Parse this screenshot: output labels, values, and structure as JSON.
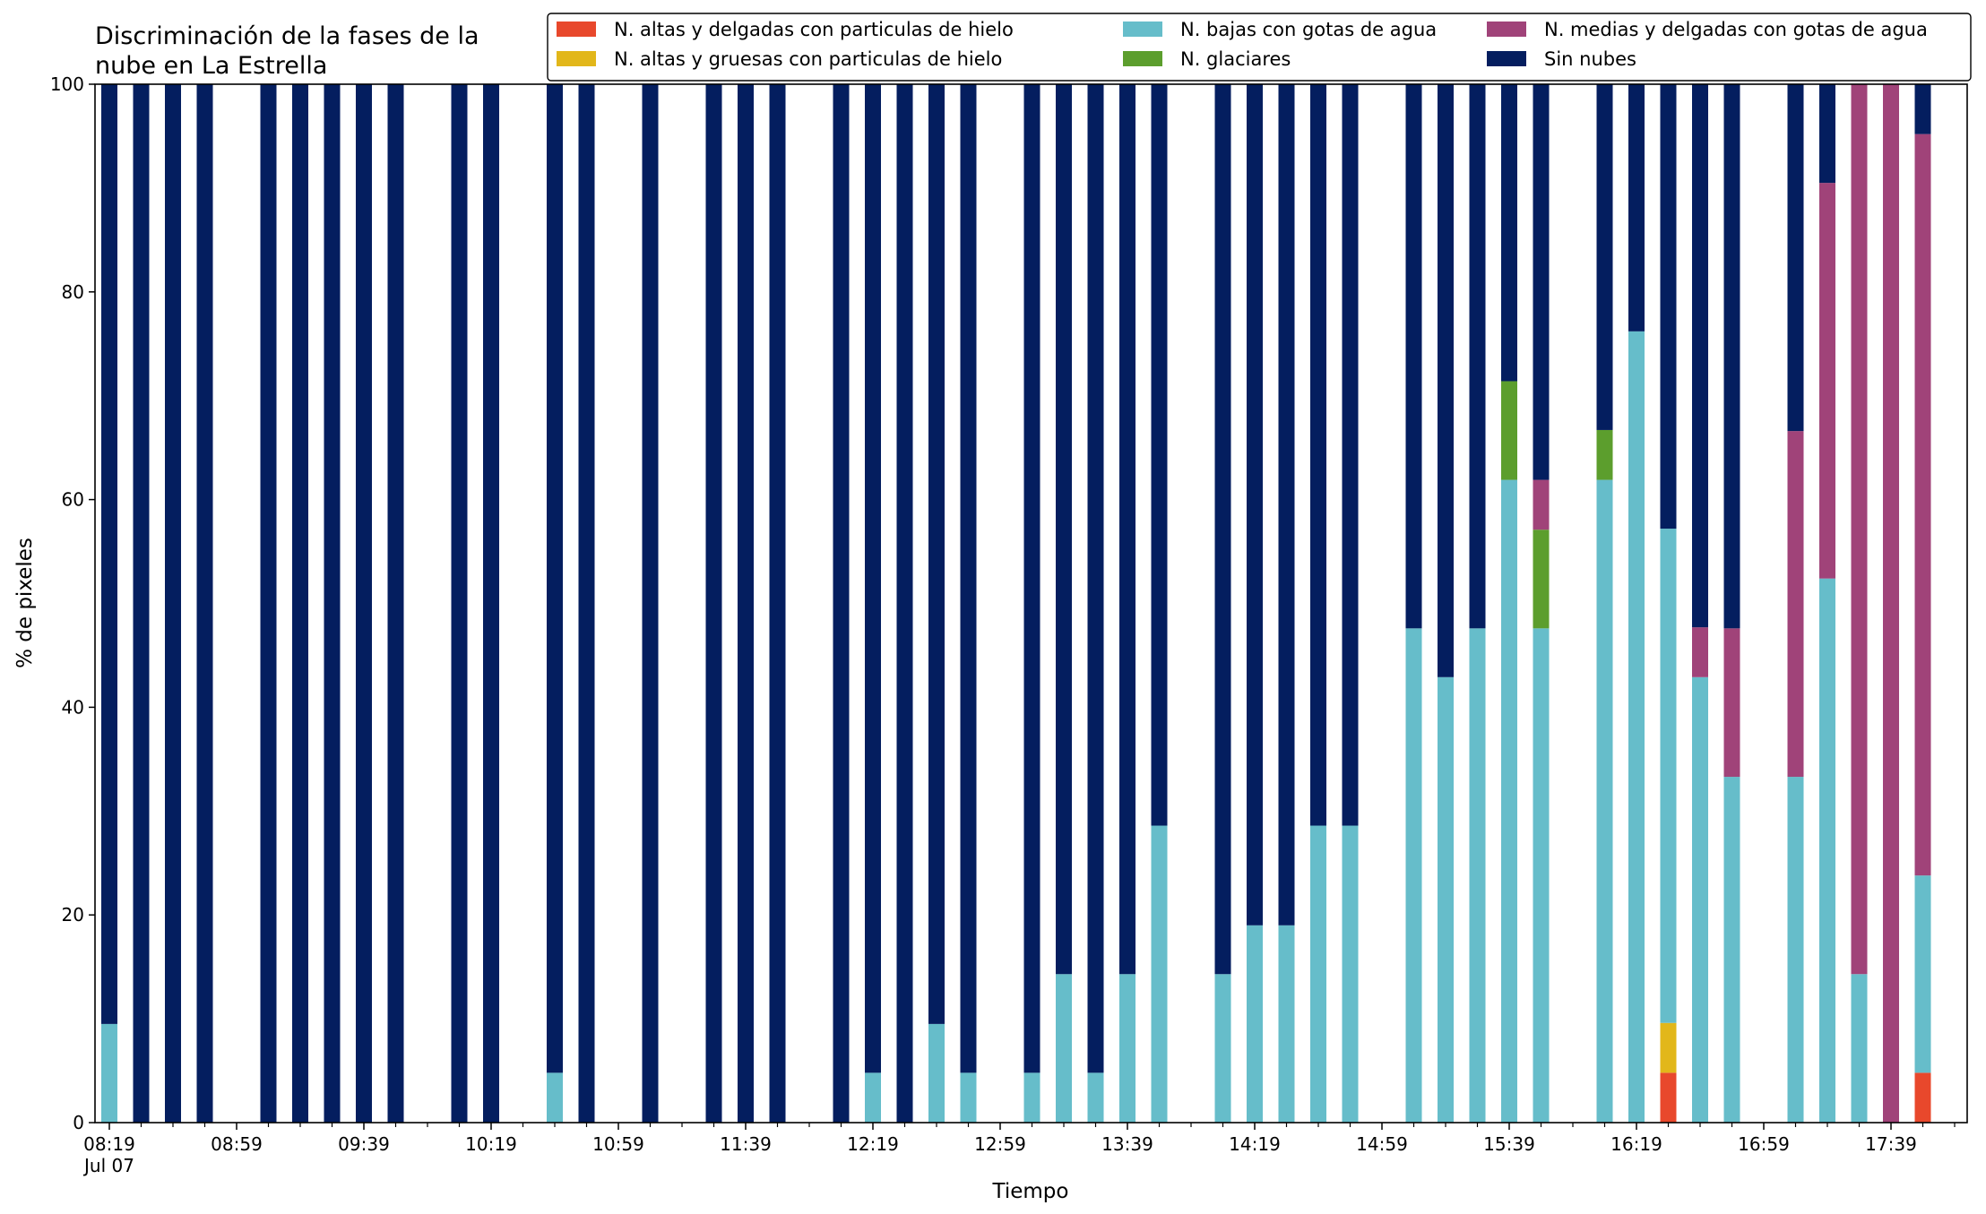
{
  "chart_data": {
    "type": "bar",
    "stacked": true,
    "title_line1": "Discriminación de la fases de la",
    "title_line2": "nube en La Estrella",
    "xlabel": "Tiempo",
    "ylabel": "% de pixeles",
    "ylim": [
      0,
      100
    ],
    "yticks": [
      0,
      20,
      40,
      60,
      80,
      100
    ],
    "x_interval_minutes": 10,
    "x_range": [
      "08:19",
      "17:59"
    ],
    "xtick_labels": [
      "08:19",
      "08:59",
      "09:39",
      "10:19",
      "10:59",
      "11:39",
      "12:19",
      "12:59",
      "13:39",
      "14:19",
      "14:59",
      "15:39",
      "16:19",
      "16:59",
      "17:39"
    ],
    "xtick_date_label": "Jul 07",
    "grid": false,
    "legend_position": "top-right",
    "series": [
      {
        "name": "N. altas y delgadas con particulas de hielo",
        "color": "#e8482c"
      },
      {
        "name": "N. altas y gruesas con particulas de hielo",
        "color": "#e2b71a"
      },
      {
        "name": "N. bajas con gotas de agua",
        "color": "#66bdca"
      },
      {
        "name": "N. glaciares",
        "color": "#5c9e2d"
      },
      {
        "name": "N. medias y delgadas con gotas de agua",
        "color": "#a04379"
      },
      {
        "name": "Sin nubes",
        "color": "#041e5f"
      }
    ],
    "bars": [
      {
        "time": "08:19",
        "values": [
          0,
          0,
          9.5,
          0,
          0,
          90.5
        ]
      },
      {
        "time": "08:29",
        "values": [
          0,
          0,
          0,
          0,
          0,
          100
        ]
      },
      {
        "time": "08:39",
        "values": [
          0,
          0,
          0,
          0,
          0,
          100
        ]
      },
      {
        "time": "08:49",
        "values": [
          0,
          0,
          0,
          0,
          0,
          100
        ]
      },
      {
        "time": "09:09",
        "values": [
          0,
          0,
          0,
          0,
          0,
          100
        ]
      },
      {
        "time": "09:19",
        "values": [
          0,
          0,
          0,
          0,
          0,
          100
        ]
      },
      {
        "time": "09:29",
        "values": [
          0,
          0,
          0,
          0,
          0,
          100
        ]
      },
      {
        "time": "09:39",
        "values": [
          0,
          0,
          0,
          0,
          0,
          100
        ]
      },
      {
        "time": "09:49",
        "values": [
          0,
          0,
          0,
          0,
          0,
          100
        ]
      },
      {
        "time": "10:09",
        "values": [
          0,
          0,
          0,
          0,
          0,
          100
        ]
      },
      {
        "time": "10:19",
        "values": [
          0,
          0,
          0,
          0,
          0,
          100
        ]
      },
      {
        "time": "10:39",
        "values": [
          0,
          0,
          4.8,
          0,
          0,
          95.2
        ]
      },
      {
        "time": "10:49",
        "values": [
          0,
          0,
          0,
          0,
          0,
          100
        ]
      },
      {
        "time": "11:09",
        "values": [
          0,
          0,
          0,
          0,
          0,
          100
        ]
      },
      {
        "time": "11:29",
        "values": [
          0,
          0,
          0,
          0,
          0,
          100
        ]
      },
      {
        "time": "11:39",
        "values": [
          0,
          0,
          0,
          0,
          0,
          100
        ]
      },
      {
        "time": "11:49",
        "values": [
          0,
          0,
          0,
          0,
          0,
          100
        ]
      },
      {
        "time": "12:09",
        "values": [
          0,
          0,
          0,
          0,
          0,
          100
        ]
      },
      {
        "time": "12:19",
        "values": [
          0,
          0,
          4.8,
          0,
          0,
          95.2
        ]
      },
      {
        "time": "12:29",
        "values": [
          0,
          0,
          0,
          0,
          0,
          100
        ]
      },
      {
        "time": "12:39",
        "values": [
          0,
          0,
          9.5,
          0,
          0,
          90.5
        ]
      },
      {
        "time": "12:49",
        "values": [
          0,
          0,
          4.8,
          0,
          0,
          95.2
        ]
      },
      {
        "time": "13:09",
        "values": [
          0,
          0,
          4.8,
          0,
          0,
          95.2
        ]
      },
      {
        "time": "13:19",
        "values": [
          0,
          0,
          14.3,
          0,
          0,
          85.7
        ]
      },
      {
        "time": "13:29",
        "values": [
          0,
          0,
          4.8,
          0,
          0,
          95.2
        ]
      },
      {
        "time": "13:39",
        "values": [
          0,
          0,
          14.3,
          0,
          0,
          85.7
        ]
      },
      {
        "time": "13:49",
        "values": [
          0,
          0,
          28.6,
          0,
          0,
          71.4
        ]
      },
      {
        "time": "14:09",
        "values": [
          0,
          0,
          14.3,
          0,
          0,
          85.7
        ]
      },
      {
        "time": "14:19",
        "values": [
          0,
          0,
          19.0,
          0,
          0,
          81.0
        ]
      },
      {
        "time": "14:29",
        "values": [
          0,
          0,
          19.0,
          0,
          0,
          81.0
        ]
      },
      {
        "time": "14:39",
        "values": [
          0,
          0,
          28.6,
          0,
          0,
          71.4
        ]
      },
      {
        "time": "14:49",
        "values": [
          0,
          0,
          28.6,
          0,
          0,
          71.4
        ]
      },
      {
        "time": "15:09",
        "values": [
          0,
          0,
          47.6,
          0,
          0,
          52.4
        ]
      },
      {
        "time": "15:19",
        "values": [
          0,
          0,
          42.9,
          0,
          0,
          57.1
        ]
      },
      {
        "time": "15:29",
        "values": [
          0,
          0,
          47.6,
          0,
          0,
          52.4
        ]
      },
      {
        "time": "15:39",
        "values": [
          0,
          0,
          61.9,
          9.5,
          0,
          28.6
        ]
      },
      {
        "time": "15:49",
        "values": [
          0,
          0,
          47.6,
          9.5,
          4.8,
          38.1
        ]
      },
      {
        "time": "16:09",
        "values": [
          0,
          0,
          61.9,
          4.8,
          0,
          33.3
        ]
      },
      {
        "time": "16:19",
        "values": [
          0,
          0,
          76.2,
          0,
          0,
          23.8
        ]
      },
      {
        "time": "16:29",
        "values": [
          4.8,
          4.8,
          47.6,
          0,
          0,
          42.8
        ]
      },
      {
        "time": "16:39",
        "values": [
          0,
          0,
          42.9,
          0,
          4.8,
          52.3
        ]
      },
      {
        "time": "16:49",
        "values": [
          0,
          0,
          33.3,
          0,
          14.3,
          52.4
        ]
      },
      {
        "time": "17:09",
        "values": [
          0,
          0,
          33.3,
          0,
          33.3,
          33.4
        ]
      },
      {
        "time": "17:19",
        "values": [
          0,
          0,
          52.4,
          0,
          38.1,
          9.5
        ]
      },
      {
        "time": "17:29",
        "values": [
          0,
          0,
          14.3,
          0,
          85.7,
          0
        ]
      },
      {
        "time": "17:39",
        "values": [
          0,
          0,
          0,
          0,
          100,
          0
        ]
      },
      {
        "time": "17:49",
        "values": [
          4.8,
          0,
          19.0,
          0,
          71.4,
          4.8
        ]
      }
    ]
  }
}
